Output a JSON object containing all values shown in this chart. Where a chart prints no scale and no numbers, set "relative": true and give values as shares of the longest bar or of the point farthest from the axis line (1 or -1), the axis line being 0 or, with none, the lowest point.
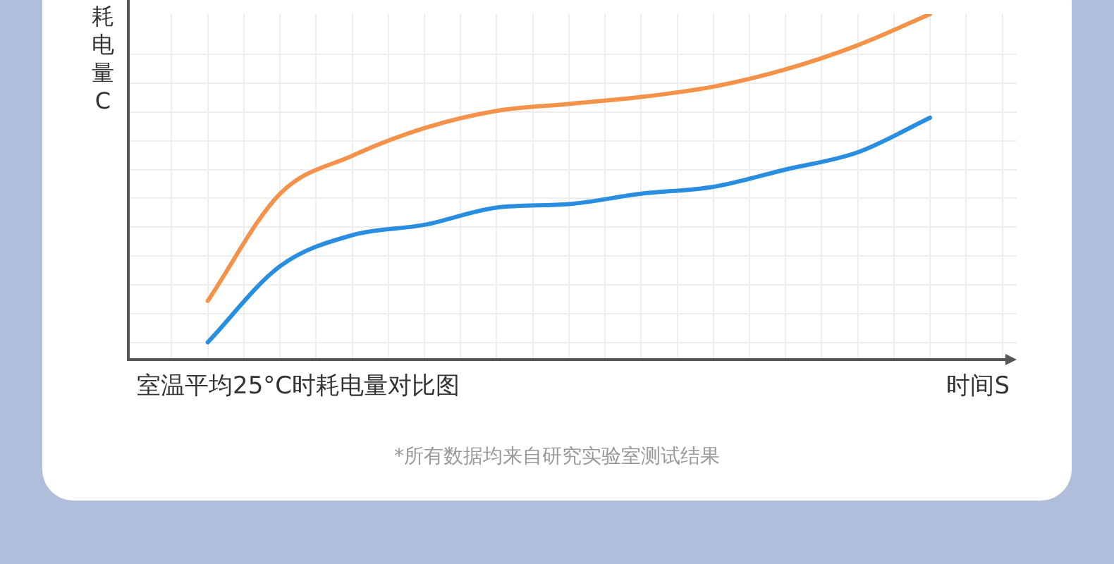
{
  "chart_data": {
    "type": "line",
    "relative": true,
    "title": "室温平均25°C时耗电量对比图",
    "xlabel": "时间S",
    "ylabel": "耗电量C",
    "annotations": [
      "*所有数据均来自研究实验室测试结果"
    ],
    "grid": true,
    "legend": false,
    "marker": "none",
    "line_style": "solid",
    "categories": [
      null,
      null,
      null,
      null,
      null,
      null,
      null,
      null,
      null,
      null,
      null
    ],
    "series": [
      {
        "color": "#f5924a",
        "values": [
          0.17,
          0.48,
          0.59,
          0.67,
          0.72,
          0.74,
          0.76,
          0.79,
          0.84,
          0.91,
          1
        ]
      },
      {
        "color": "#2a8ee0",
        "values": [
          0.05,
          0.27,
          0.36,
          0.39,
          0.44,
          0.45,
          0.48,
          0.5,
          0.55,
          0.6,
          0.7
        ]
      }
    ]
  }
}
